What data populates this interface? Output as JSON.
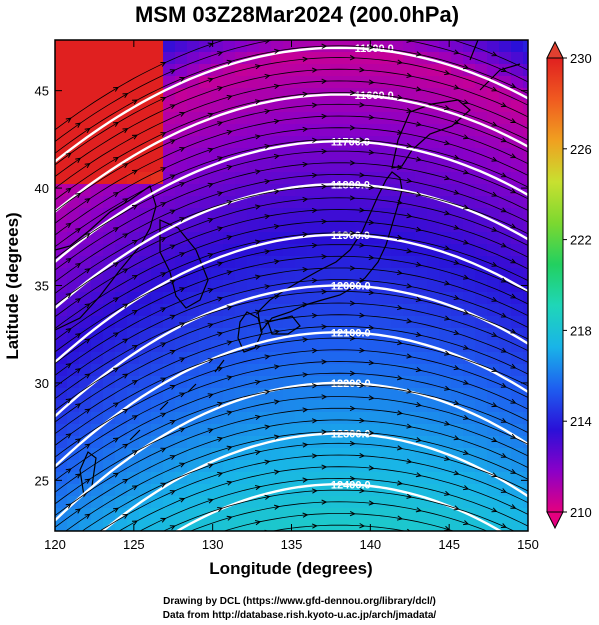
{
  "title": "MSM 03Z28Mar2024 (200.0hPa)",
  "x_axis": {
    "label": "Longitude (degrees)",
    "ticks": [
      120,
      125,
      130,
      135,
      140,
      145,
      150
    ],
    "range": [
      120,
      150
    ]
  },
  "y_axis": {
    "label": "Latitude  (degrees)",
    "ticks": [
      25,
      30,
      35,
      40,
      45
    ],
    "range": [
      22.4,
      47.6
    ]
  },
  "colorbar": {
    "ticks": [
      230,
      226,
      222,
      218,
      214,
      210
    ],
    "range": [
      210,
      230
    ],
    "colors": [
      "#e4007f",
      "#8a00c8",
      "#2a10d8",
      "#1e5ff0",
      "#19b4e8",
      "#1fd6b8",
      "#22d060",
      "#7cd830",
      "#c8e030",
      "#f0a020",
      "#f05a20",
      "#e02020"
    ]
  },
  "contours": [
    {
      "value": 11500.0,
      "label": "11500.0"
    },
    {
      "value": 11600.0,
      "label": "11600.0"
    },
    {
      "value": 11700.0,
      "label": "11700.0"
    },
    {
      "value": 11800.0,
      "label": "11800.0"
    },
    {
      "value": 11900.0,
      "label": "11900.0"
    },
    {
      "value": 12000.0,
      "label": "12000.0"
    },
    {
      "value": 12100.0,
      "label": "12100.0"
    },
    {
      "value": 12200.0,
      "label": "12200.0"
    },
    {
      "value": 12300.0,
      "label": "12300.0"
    },
    {
      "value": 12400.0,
      "label": "12400.0"
    }
  ],
  "credits": [
    "Drawing by DCL (https://www.gfd-dennou.org/library/dcl/)",
    "Data from http://database.rish.kyoto-u.ac.jp/arch/jmadata/"
  ]
}
